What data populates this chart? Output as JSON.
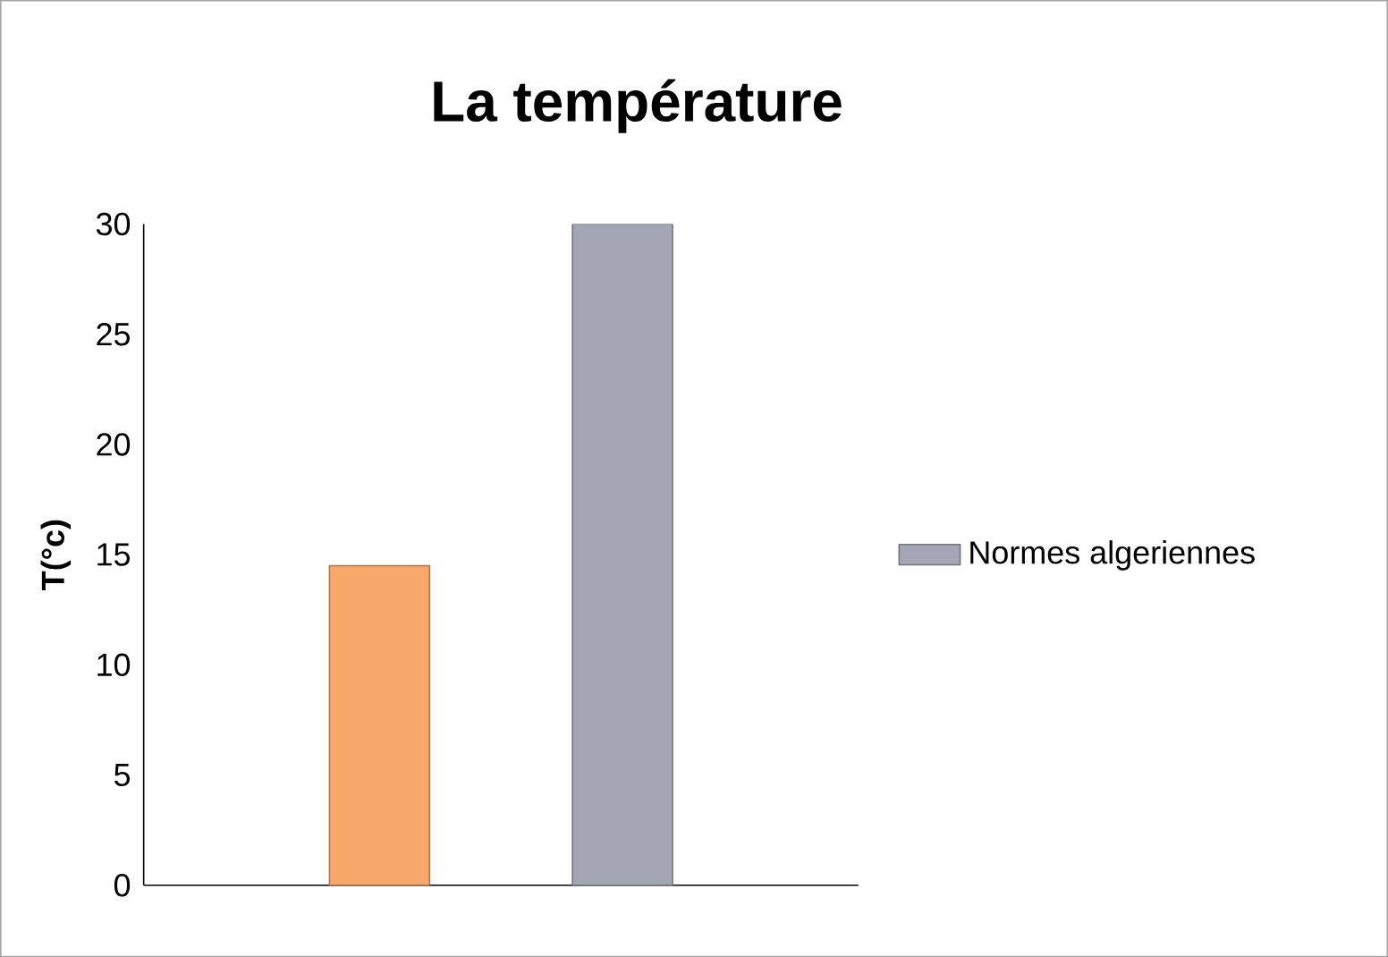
{
  "chart_data": {
    "type": "bar",
    "title": "La température",
    "ylabel": "T(°c)",
    "categories": [
      null
    ],
    "series": [
      {
        "color": "#f7a86a",
        "values": [
          14.5
        ]
      },
      {
        "name": "Normes algeriennes",
        "color": "#a3a7b3",
        "values": [
          30
        ]
      }
    ],
    "ylim": [
      0,
      30
    ],
    "yticks": [
      0,
      5,
      10,
      15,
      20,
      25,
      30
    ],
    "legend": "right"
  }
}
